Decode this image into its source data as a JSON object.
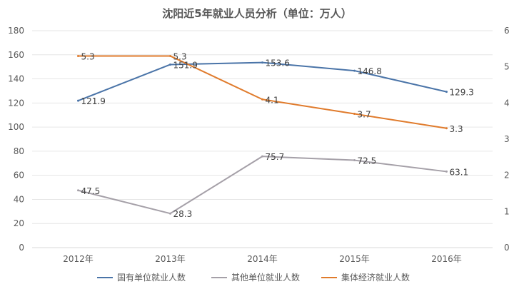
{
  "chart_data": {
    "type": "line",
    "title": "沈阳近5年就业人员分析（单位：万人）",
    "categories": [
      "2012年",
      "2013年",
      "2014年",
      "2015年",
      "2016年"
    ],
    "y_left": {
      "min": 0,
      "max": 180,
      "step": 20,
      "ticks": [
        "0",
        "20",
        "40",
        "60",
        "80",
        "100",
        "120",
        "140",
        "160",
        "180"
      ]
    },
    "y_right": {
      "min": 0,
      "max": 6,
      "step": 1,
      "ticks": [
        "0",
        "1",
        "2",
        "3",
        "4",
        "5",
        "6"
      ]
    },
    "grid": true,
    "legend_position": "bottom",
    "series": [
      {
        "name": "国有单位就业人数",
        "axis": "left",
        "color": "#4a74a8",
        "values": [
          121.9,
          151.9,
          153.6,
          146.8,
          129.3
        ],
        "labels": [
          "121.9",
          "151.9",
          "153.6",
          "146.8",
          "129.3"
        ]
      },
      {
        "name": "其他单位就业人数",
        "axis": "left",
        "color": "#a5a0a8",
        "values": [
          47.5,
          28.3,
          75.7,
          72.5,
          63.1
        ],
        "labels": [
          "47.5",
          "28.3",
          "75.7",
          "72.5",
          "63.1"
        ]
      },
      {
        "name": "集体经济就业人数",
        "axis": "right",
        "color": "#e07b2c",
        "values": [
          5.3,
          5.3,
          4.1,
          3.7,
          3.3
        ],
        "labels": [
          "5.3",
          "5.3",
          "4.1",
          "3.7",
          "3.3"
        ]
      }
    ]
  }
}
